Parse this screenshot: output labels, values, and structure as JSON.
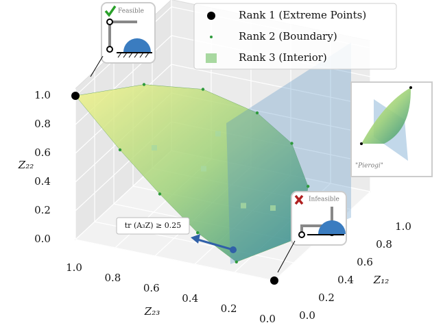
{
  "chart_data": {
    "type": "scatter3d",
    "xlabel": "Z₂₃",
    "ylabel": "Z₁₂",
    "zlabel": "Z₂₂",
    "xlim": [
      0,
      1
    ],
    "ylim": [
      0,
      1
    ],
    "zlim": [
      0,
      1.05
    ],
    "xticks": [
      {
        "value": 0,
        "label": "0.0"
      },
      0.2,
      0.4,
      0.6,
      0.8,
      {
        "value": 1,
        "label": "1.0"
      }
    ],
    "yticks": [
      {
        "value": 0,
        "label": "0.0"
      },
      0.2,
      0.4,
      0.6,
      0.8,
      {
        "value": 1,
        "label": "1.0"
      }
    ],
    "zticks": [
      {
        "value": 0,
        "label": "0.0"
      },
      0.2,
      0.4,
      0.6,
      0.8,
      {
        "value": 1,
        "label": "1.0"
      }
    ],
    "grid": true,
    "legend": "upper right",
    "series": [
      {
        "name": "Rank 1 (Extreme Points)",
        "color": "#000000",
        "marker": "circle",
        "x": [
          1,
          0
        ],
        "y": [
          0,
          0
        ],
        "z": [
          1,
          0
        ]
      },
      {
        "name": "Rank 2 (Boundary)",
        "color": "#2e9a3c",
        "marker": "dot",
        "x": [
          0.8,
          0.6,
          0.4,
          0.25,
          0.12,
          0.03,
          0.2,
          0.4,
          0.6,
          0.8
        ],
        "y": [
          0.3,
          0.5,
          0.65,
          0.7,
          0.6,
          0.35,
          0.02,
          0.03,
          0.05,
          0.05
        ],
        "z": [
          0.95,
          0.85,
          0.65,
          0.45,
          0.25,
          0.08,
          0.06,
          0.2,
          0.4,
          0.65
        ]
      },
      {
        "name": "Rank 3 (Interior)",
        "color": "#a8d8a0",
        "marker": "square",
        "x": [
          0.7,
          0.5,
          0.3,
          0.5,
          0.2
        ],
        "y": [
          0.2,
          0.3,
          0.3,
          0.45,
          0.4
        ],
        "z": [
          0.6,
          0.45,
          0.25,
          0.6,
          0.2
        ]
      }
    ],
    "annotation": "tr (A₃Z) ≥ 0.25"
  },
  "insets": {
    "feasible": "Feasible",
    "infeasible": "Infeasible",
    "projection": "\"Pierogi\""
  }
}
